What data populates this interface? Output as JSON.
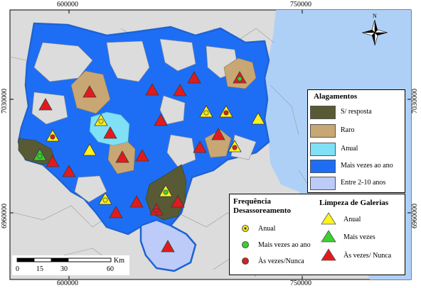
{
  "coordinates": {
    "x_top": [
      "600000",
      "750000"
    ],
    "x_bottom": [
      "600000",
      "750000"
    ],
    "y_left": [
      "7030000",
      "6960000"
    ],
    "y_right": [
      "7030000",
      "6960000"
    ]
  },
  "north_label": "N",
  "scale_bar": {
    "unit": "Km",
    "ticks": [
      "0",
      "15",
      "30",
      "60"
    ]
  },
  "legend_alagamentos": {
    "title": "Alagamentos",
    "items": [
      {
        "label": "S/ resposta",
        "color": "#575a35"
      },
      {
        "label": "Raro",
        "color": "#c8a774"
      },
      {
        "label": "Anual",
        "color": "#7fe0f6"
      },
      {
        "label": "Mais vezes ao ano",
        "color": "#1e6ef5"
      },
      {
        "label": "Entre 2-10 anos",
        "color": "#bccbf7"
      }
    ]
  },
  "legend_desassoreamento": {
    "title": "Frequência Desassoreamento",
    "items": [
      {
        "label": "Anual",
        "color": "#f3e21c"
      },
      {
        "label": "Mais vezes ao ano",
        "color": "#39d12c"
      },
      {
        "label": "Às vezes/Nunca",
        "color": "#d91f1f"
      }
    ]
  },
  "legend_galerias": {
    "title": "Limpeza de Galerias",
    "items": [
      {
        "label": "Anual",
        "color": "#fff31c"
      },
      {
        "label": "Mais vezes",
        "color": "#39d12c"
      },
      {
        "label": "Às vezes/ Nunca",
        "color": "#e31a1c"
      }
    ]
  },
  "colors": {
    "sea": "#aed0f6",
    "land": "#dcdcdc",
    "region_border": "#1d63d4"
  }
}
